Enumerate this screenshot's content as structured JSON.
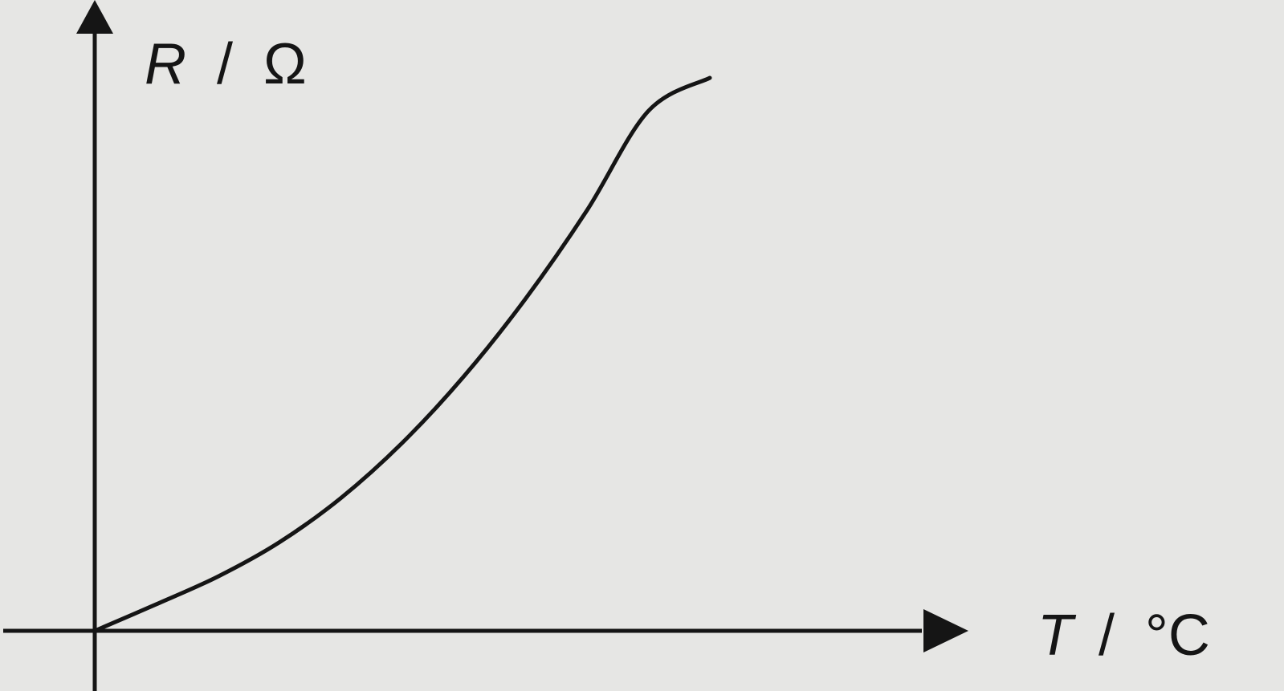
{
  "chart_data": {
    "type": "line",
    "title": "",
    "ylabel": {
      "symbol": "R",
      "unit": "Ω"
    },
    "xlabel": {
      "symbol": "T",
      "unit": "°C"
    },
    "grid": false,
    "tick_labels": [],
    "series": [
      {
        "x": [
          0,
          0.1,
          0.2,
          0.3,
          0.4,
          0.5,
          0.6,
          0.7,
          0.8,
          0.9,
          1.0
        ],
        "y": [
          0,
          0.048,
          0.098,
          0.16,
          0.24,
          0.34,
          0.46,
          0.6,
          0.76,
          0.94,
          1.0
        ]
      }
    ]
  }
}
